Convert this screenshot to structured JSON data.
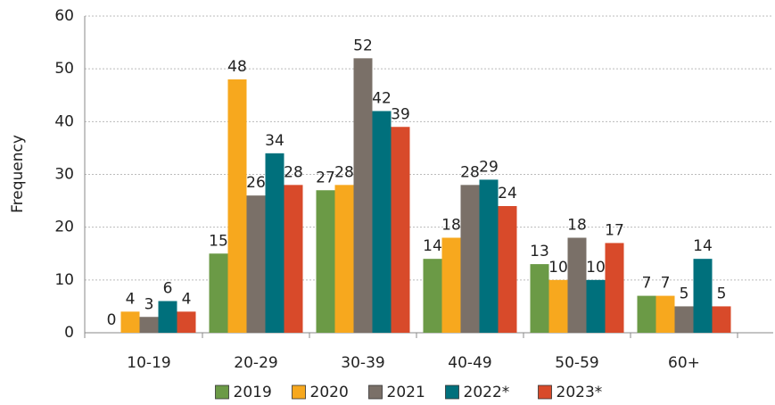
{
  "chart_data": {
    "type": "bar",
    "y_label": "Frequency",
    "categories": [
      "10-19",
      "20-29",
      "30-39",
      "40-49",
      "50-59",
      "60+"
    ],
    "series": [
      {
        "name": "2019",
        "color": "#6b9a46",
        "values": [
          0,
          15,
          27,
          14,
          13,
          7
        ]
      },
      {
        "name": "2020",
        "color": "#f7a81e",
        "values": [
          4,
          48,
          28,
          18,
          10,
          7
        ]
      },
      {
        "name": "2021",
        "color": "#7a7068",
        "values": [
          3,
          26,
          52,
          28,
          18,
          5
        ]
      },
      {
        "name": "2022*",
        "color": "#00707c",
        "values": [
          6,
          34,
          42,
          29,
          10,
          14
        ]
      },
      {
        "name": "2023*",
        "color": "#d84a2a",
        "values": [
          4,
          28,
          39,
          24,
          17,
          5
        ]
      }
    ],
    "ylim": [
      0,
      60
    ],
    "yticks": [
      0,
      10,
      20,
      30,
      40,
      50,
      60
    ],
    "grid": true,
    "legend": "bottom"
  }
}
